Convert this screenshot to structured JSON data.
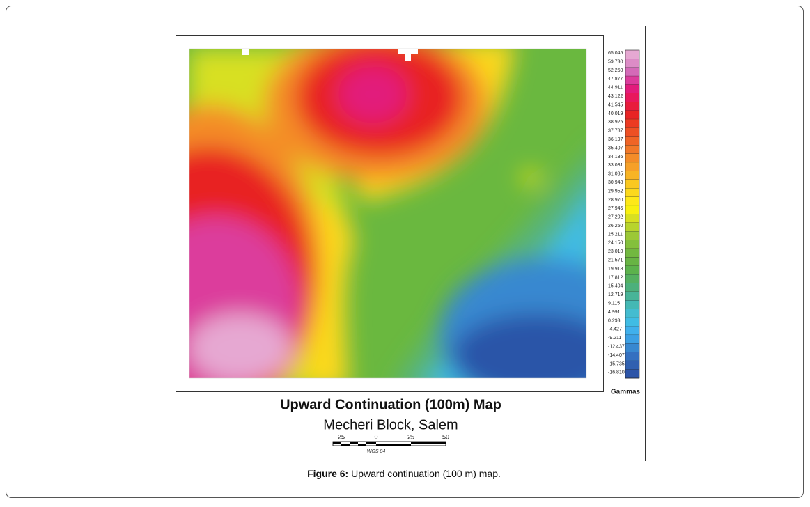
{
  "figure": {
    "map_title": "Upward Continuation (100m) Map",
    "map_subtitle": "Mecheri Block, Salem",
    "scale_labels": [
      "25",
      "0",
      "25",
      "50"
    ],
    "datum": "WGS 84",
    "colorbar_unit": "Gammas",
    "colorbar": [
      {
        "label": "65.045",
        "color": "#e6a8d2"
      },
      {
        "label": "59.730",
        "color": "#dc8cc6"
      },
      {
        "label": "52.250",
        "color": "#d46ab8"
      },
      {
        "label": "47.877",
        "color": "#dc3c9c"
      },
      {
        "label": "44.911",
        "color": "#e21c7c"
      },
      {
        "label": "43.122",
        "color": "#e8185c"
      },
      {
        "label": "41.545",
        "color": "#e81c3c"
      },
      {
        "label": "40.019",
        "color": "#e82424"
      },
      {
        "label": "38.925",
        "color": "#ec3a22"
      },
      {
        "label": "37.787",
        "color": "#ee5024"
      },
      {
        "label": "36.197",
        "color": "#f06426"
      },
      {
        "label": "35.407",
        "color": "#f27828"
      },
      {
        "label": "34.136",
        "color": "#f48c28"
      },
      {
        "label": "33.031",
        "color": "#f6a028"
      },
      {
        "label": "31.085",
        "color": "#f8b424"
      },
      {
        "label": "30.948",
        "color": "#fac820"
      },
      {
        "label": "29.952",
        "color": "#fcd81c"
      },
      {
        "label": "28.970",
        "color": "#fee818"
      },
      {
        "label": "27.946",
        "color": "#f8f010"
      },
      {
        "label": "27.202",
        "color": "#d8e020"
      },
      {
        "label": "26.250",
        "color": "#b8d42c"
      },
      {
        "label": "25.211",
        "color": "#9cc836"
      },
      {
        "label": "24.150",
        "color": "#84c03c"
      },
      {
        "label": "23.010",
        "color": "#72b840"
      },
      {
        "label": "21.571",
        "color": "#68b444"
      },
      {
        "label": "19.918",
        "color": "#5cb24c"
      },
      {
        "label": "17.812",
        "color": "#54b060"
      },
      {
        "label": "15.404",
        "color": "#4cb07c"
      },
      {
        "label": "12.719",
        "color": "#48b498"
      },
      {
        "label": "9.115",
        "color": "#44b8b4"
      },
      {
        "label": "4.991",
        "color": "#44bcd0"
      },
      {
        "label": "0.293",
        "color": "#40bce4"
      },
      {
        "label": "-4.427",
        "color": "#40b0ec"
      },
      {
        "label": "-9.211",
        "color": "#3ca0e4"
      },
      {
        "label": "-12.437",
        "color": "#3888d0"
      },
      {
        "label": "-14.407",
        "color": "#3470c0"
      },
      {
        "label": "-15.735",
        "color": "#3060b0"
      },
      {
        "label": "-16.810",
        "color": "#2c54a8"
      }
    ],
    "caption": {
      "label": "Figure 6:",
      "text": "Upward continuation (100 m) map."
    }
  }
}
